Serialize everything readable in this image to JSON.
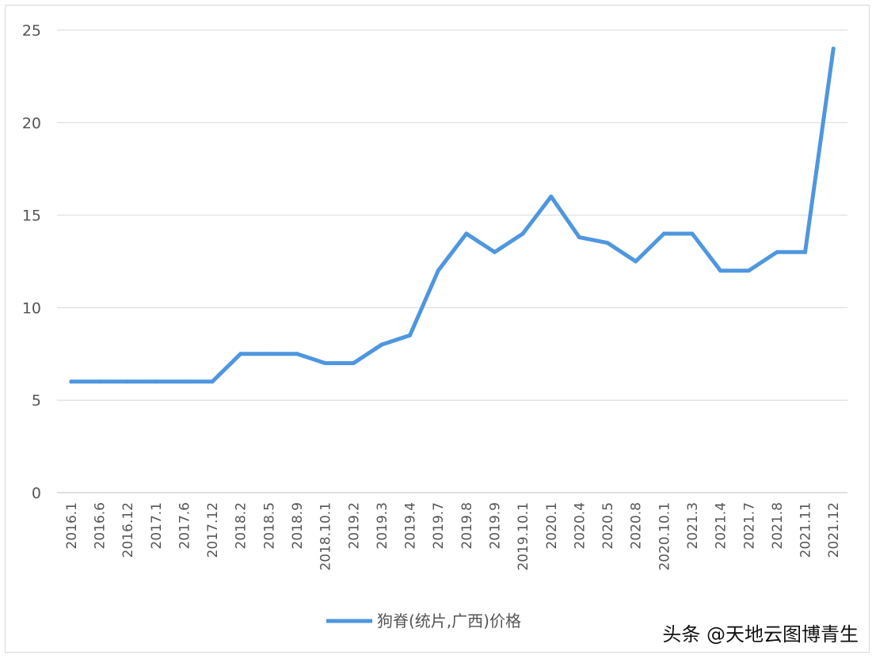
{
  "chart_data": {
    "type": "line",
    "categories": [
      "2016.1",
      "2016.6",
      "2016.12",
      "2017.1",
      "2017.6",
      "2017.12",
      "2018.2",
      "2018.5",
      "2018.9",
      "2018.10.1",
      "2019.2",
      "2019.3",
      "2019.4",
      "2019.7",
      "2019.8",
      "2019.9",
      "2019.10.1",
      "2020.1",
      "2020.4",
      "2020.5",
      "2020.8",
      "2020.10.1",
      "2021.3",
      "2021.4",
      "2021.7",
      "2021.8",
      "2021.11",
      "2021.12"
    ],
    "series": [
      {
        "name": "狗脊(统片,广西)价格",
        "color": "#4e97df",
        "values": [
          6,
          6,
          6,
          6,
          6,
          6,
          7.5,
          7.5,
          7.5,
          7,
          7,
          8,
          8.5,
          12,
          14,
          13,
          14,
          16,
          13.8,
          13.5,
          12.5,
          14,
          14,
          12,
          12,
          13,
          13,
          24
        ]
      }
    ],
    "ylim": [
      0,
      25
    ],
    "yticks": [
      0,
      5,
      10,
      15,
      20,
      25
    ],
    "grid": true,
    "legend": "bottom"
  },
  "watermark": {
    "text": "头条 @天地云图博青生"
  }
}
